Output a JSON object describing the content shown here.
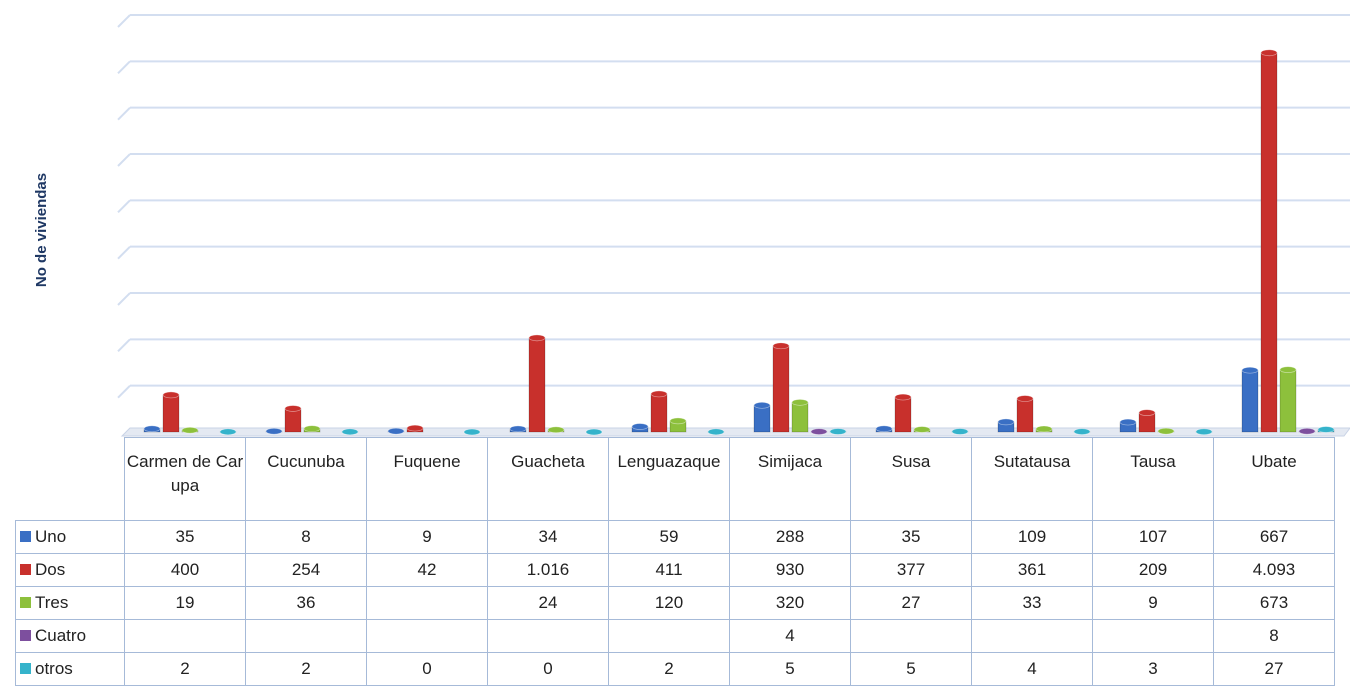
{
  "chart_data": {
    "type": "bar",
    "y_label": "No de viviendas",
    "categories": [
      "Carmen de Carupa",
      "Cucunuba",
      "Fuquene",
      "Guacheta",
      "Lenguazaque",
      "Simijaca",
      "Susa",
      "Sutatausa",
      "Tausa",
      "Ubate"
    ],
    "series": [
      {
        "name": "Uno",
        "color": "#3a6fc4",
        "values": [
          35,
          8,
          9,
          34,
          59,
          288,
          35,
          109,
          107,
          667
        ]
      },
      {
        "name": "Dos",
        "color": "#c8302c",
        "values": [
          400,
          254,
          42,
          1016,
          411,
          930,
          377,
          361,
          209,
          4093
        ],
        "value_labels": [
          "400",
          "254",
          "42",
          "1.016",
          "411",
          "930",
          "377",
          "361",
          "209",
          "4.093"
        ]
      },
      {
        "name": "Tres",
        "color": "#8dc03c",
        "values": [
          19,
          36,
          null,
          24,
          120,
          320,
          27,
          33,
          9,
          673
        ]
      },
      {
        "name": "Cuatro",
        "color": "#7d4f9e",
        "values": [
          null,
          null,
          null,
          null,
          null,
          4,
          null,
          null,
          null,
          8
        ]
      },
      {
        "name": "otros",
        "color": "#35b3cb",
        "values": [
          2,
          2,
          0,
          0,
          2,
          5,
          5,
          4,
          3,
          27
        ]
      }
    ],
    "ylim": [
      0,
      4500
    ],
    "yticks": [
      0,
      500,
      1000,
      1500,
      2000,
      2500,
      3000,
      3500,
      4000,
      4500
    ],
    "grid": true
  }
}
